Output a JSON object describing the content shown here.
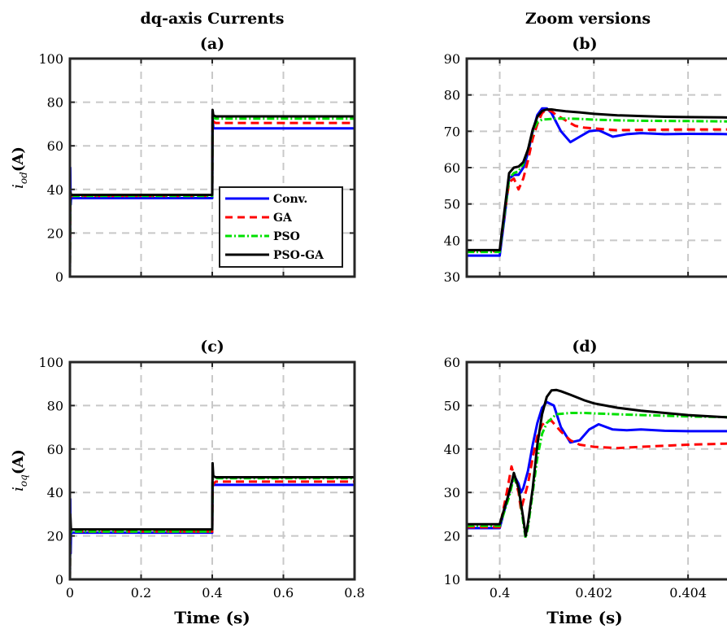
{
  "column_titles": {
    "left": "dq-axis Currents",
    "right": "Zoom versions"
  },
  "legend_entries": [
    "Conv.",
    "GA",
    "PSO",
    "PSO-GA"
  ],
  "colors": {
    "Conv.": "#0000ff",
    "GA": "#ff0000",
    "PSO": "#00e000",
    "PSO-GA": "#000000"
  },
  "chart_data": [
    {
      "type": "line",
      "panel_label": "(a)",
      "title": "dq-axis Currents",
      "xlabel": "",
      "ylabel_symbol": "i",
      "ylabel_sub": "od",
      "ylabel_unit": "(A)",
      "xlim": [
        0,
        0.8
      ],
      "ylim": [
        0,
        100
      ],
      "xticks": [
        0,
        0.2,
        0.4,
        0.6,
        0.8
      ],
      "yticks": [
        0,
        20,
        40,
        60,
        80,
        100
      ],
      "xtick_labels": [],
      "ytick_labels": [
        "0",
        "20",
        "40",
        "60",
        "80",
        "100"
      ],
      "grid": true,
      "legend": "center-right",
      "series": [
        {
          "name": "Conv.",
          "x": [
            0,
            0.001,
            0.002,
            0.003,
            0.006,
            0.4,
            0.401,
            0.403,
            0.41,
            0.8
          ],
          "y": [
            0,
            50,
            33,
            36,
            36,
            36,
            76,
            68,
            68,
            68
          ]
        },
        {
          "name": "GA",
          "x": [
            0,
            0.001,
            0.003,
            0.006,
            0.4,
            0.401,
            0.403,
            0.41,
            0.8
          ],
          "y": [
            0,
            36,
            37,
            37,
            37,
            75,
            71,
            70.5,
            70.5
          ]
        },
        {
          "name": "PSO",
          "x": [
            0,
            0.001,
            0.003,
            0.006,
            0.4,
            0.401,
            0.403,
            0.41,
            0.8
          ],
          "y": [
            0,
            37,
            37,
            37,
            37,
            74,
            73,
            72.5,
            72.5
          ]
        },
        {
          "name": "PSO-GA",
          "x": [
            0,
            0.001,
            0.003,
            0.006,
            0.4,
            0.401,
            0.403,
            0.41,
            0.8
          ],
          "y": [
            0,
            39,
            37.5,
            37.5,
            37.5,
            76.5,
            74,
            73.5,
            73.5
          ]
        }
      ]
    },
    {
      "type": "line",
      "panel_label": "(b)",
      "title": "Zoom versions",
      "xlabel": "",
      "xlim": [
        0.3993,
        0.405
      ],
      "ylim": [
        30,
        90
      ],
      "xticks": [
        0.4,
        0.402,
        0.404
      ],
      "yticks": [
        30,
        40,
        50,
        60,
        70,
        80,
        90
      ],
      "xtick_labels": [],
      "ytick_labels": [
        "30",
        "40",
        "50",
        "60",
        "70",
        "80",
        "90"
      ],
      "grid": true,
      "series": [
        {
          "name": "Conv.",
          "x": [
            0.3993,
            0.4,
            0.4001,
            0.4002,
            0.4003,
            0.4004,
            0.4005,
            0.4006,
            0.4007,
            0.4008,
            0.4009,
            0.401,
            0.4011,
            0.4013,
            0.4015,
            0.4017,
            0.4019,
            0.4021,
            0.4024,
            0.4027,
            0.403,
            0.4035,
            0.404,
            0.405
          ],
          "y": [
            35.8,
            35.8,
            46,
            57,
            58,
            58,
            60,
            64,
            70,
            74.5,
            76.3,
            76.3,
            75,
            70,
            67,
            68.5,
            70,
            70.3,
            68.5,
            69.2,
            69.5,
            69.2,
            69.3,
            69.2
          ]
        },
        {
          "name": "GA",
          "x": [
            0.3993,
            0.4,
            0.4001,
            0.4002,
            0.4003,
            0.4004,
            0.4005,
            0.4006,
            0.4007,
            0.4008,
            0.4009,
            0.401,
            0.4011,
            0.4012,
            0.4014,
            0.4016,
            0.4018,
            0.402,
            0.4025,
            0.403,
            0.404,
            0.405
          ],
          "y": [
            37,
            37,
            47,
            56,
            57,
            54,
            57,
            62,
            68,
            72,
            75,
            76,
            75.5,
            74.5,
            73,
            71.5,
            71,
            70.8,
            70.3,
            70.4,
            70.5,
            70.5
          ]
        },
        {
          "name": "PSO",
          "x": [
            0.3993,
            0.4,
            0.4001,
            0.4002,
            0.4003,
            0.4004,
            0.4005,
            0.4006,
            0.4007,
            0.4008,
            0.4009,
            0.401,
            0.4012,
            0.4014,
            0.4017,
            0.402,
            0.4025,
            0.403,
            0.404,
            0.405
          ],
          "y": [
            36.8,
            36.8,
            47,
            57,
            58.5,
            59,
            61,
            65,
            70,
            72.5,
            73.2,
            73.3,
            73.5,
            73.5,
            73.4,
            73.2,
            73,
            72.9,
            72.8,
            72.7
          ]
        },
        {
          "name": "PSO-GA",
          "x": [
            0.3993,
            0.4,
            0.4001,
            0.4002,
            0.4003,
            0.4004,
            0.4005,
            0.4006,
            0.4007,
            0.4008,
            0.4009,
            0.401,
            0.4011,
            0.4012,
            0.4014,
            0.4017,
            0.402,
            0.4025,
            0.403,
            0.4035,
            0.404,
            0.405
          ],
          "y": [
            37.3,
            37.3,
            48,
            58.5,
            60,
            60.3,
            61.5,
            65,
            70.5,
            74,
            75.6,
            76,
            76,
            75.8,
            75.5,
            75.2,
            74.8,
            74.4,
            74.2,
            74,
            73.9,
            73.8
          ]
        }
      ]
    },
    {
      "type": "line",
      "panel_label": "(c)",
      "title": "",
      "xlabel": "Time (s)",
      "ylabel_symbol": "i",
      "ylabel_sub": "oq",
      "ylabel_unit": "(A)",
      "xlim": [
        0,
        0.8
      ],
      "ylim": [
        0,
        100
      ],
      "xticks": [
        0,
        0.2,
        0.4,
        0.6,
        0.8
      ],
      "yticks": [
        0,
        20,
        40,
        60,
        80,
        100
      ],
      "xtick_labels": [
        "0",
        "0.2",
        "0.4",
        "0.6",
        "0.8"
      ],
      "ytick_labels": [
        "0",
        "20",
        "40",
        "60",
        "80",
        "100"
      ],
      "grid": true,
      "series": [
        {
          "name": "Conv.",
          "x": [
            0,
            0.001,
            0.002,
            0.003,
            0.006,
            0.4,
            0.401,
            0.403,
            0.41,
            0.8
          ],
          "y": [
            0,
            37,
            12,
            21,
            21.5,
            21.5,
            45,
            43.5,
            43.5,
            43.5
          ]
        },
        {
          "name": "GA",
          "x": [
            0,
            0.001,
            0.003,
            0.006,
            0.4,
            0.401,
            0.403,
            0.41,
            0.8
          ],
          "y": [
            0,
            25,
            22,
            22,
            22,
            41,
            44,
            45,
            45
          ]
        },
        {
          "name": "PSO",
          "x": [
            0,
            0.001,
            0.003,
            0.006,
            0.4,
            0.401,
            0.403,
            0.41,
            0.8
          ],
          "y": [
            0,
            26,
            22,
            22,
            22,
            46,
            46.5,
            46.5,
            46.5
          ]
        },
        {
          "name": "PSO-GA",
          "x": [
            0,
            0.001,
            0.003,
            0.006,
            0.4,
            0.401,
            0.403,
            0.41,
            0.8
          ],
          "y": [
            0,
            30,
            23,
            23,
            23,
            53.5,
            47.5,
            47,
            47
          ]
        }
      ]
    },
    {
      "type": "line",
      "panel_label": "(d)",
      "title": "",
      "xlabel": "Time (s)",
      "xlim": [
        0.3993,
        0.405
      ],
      "ylim": [
        10,
        60
      ],
      "xticks": [
        0.4,
        0.402,
        0.404
      ],
      "yticks": [
        10,
        20,
        30,
        40,
        50,
        60
      ],
      "xtick_labels": [
        "0.4",
        "0.402",
        "0.404"
      ],
      "ytick_labels": [
        "10",
        "20",
        "30",
        "40",
        "50",
        "60"
      ],
      "grid": true,
      "series": [
        {
          "name": "Conv.",
          "x": [
            0.3993,
            0.4,
            0.4002,
            0.4003,
            0.4004,
            0.40045,
            0.4005,
            0.4006,
            0.4007,
            0.4008,
            0.4009,
            0.401,
            0.40115,
            0.4013,
            0.4015,
            0.4017,
            0.4019,
            0.4021,
            0.4024,
            0.4027,
            0.403,
            0.4035,
            0.404,
            0.405
          ],
          "y": [
            21.8,
            21.8,
            30,
            34,
            32,
            30,
            31,
            35,
            41,
            46,
            49.5,
            50.8,
            50,
            45,
            41.5,
            42,
            44.5,
            45.7,
            44.5,
            44.3,
            44.5,
            44.2,
            44.1,
            44.1
          ]
        },
        {
          "name": "GA",
          "x": [
            0.3993,
            0.4,
            0.40015,
            0.40025,
            0.4003,
            0.4004,
            0.40045,
            0.4005,
            0.4006,
            0.4007,
            0.4008,
            0.4009,
            0.401,
            0.4011,
            0.4013,
            0.4015,
            0.4017,
            0.402,
            0.4025,
            0.403,
            0.404,
            0.405
          ],
          "y": [
            22,
            22,
            30,
            36,
            34,
            30,
            26,
            28,
            32,
            38,
            43,
            45.5,
            46.5,
            46.5,
            44,
            42,
            41,
            40.5,
            40.2,
            40.5,
            41,
            41.3
          ]
        },
        {
          "name": "PSO",
          "x": [
            0.3993,
            0.4,
            0.4002,
            0.4003,
            0.4004,
            0.4005,
            0.40055,
            0.4006,
            0.4007,
            0.4008,
            0.4009,
            0.401,
            0.4012,
            0.4015,
            0.4018,
            0.402,
            0.4025,
            0.403,
            0.404,
            0.405
          ],
          "y": [
            22.3,
            22.3,
            29,
            33.5,
            31,
            23,
            19.5,
            22,
            30,
            38,
            43.5,
            46,
            48,
            48.3,
            48.3,
            48.2,
            48,
            47.8,
            47.5,
            47.3
          ]
        },
        {
          "name": "PSO-GA",
          "x": [
            0.3993,
            0.4,
            0.4002,
            0.4003,
            0.4004,
            0.4005,
            0.40055,
            0.4006,
            0.4007,
            0.4008,
            0.4009,
            0.401,
            0.4011,
            0.4012,
            0.4013,
            0.4015,
            0.4018,
            0.402,
            0.4025,
            0.403,
            0.404,
            0.405
          ],
          "y": [
            22.7,
            22.7,
            30,
            34.5,
            31,
            24,
            20,
            23,
            31,
            41,
            48,
            52,
            53.5,
            53.6,
            53.3,
            52.5,
            51.2,
            50.5,
            49.5,
            48.8,
            47.8,
            47.2
          ]
        }
      ]
    }
  ]
}
